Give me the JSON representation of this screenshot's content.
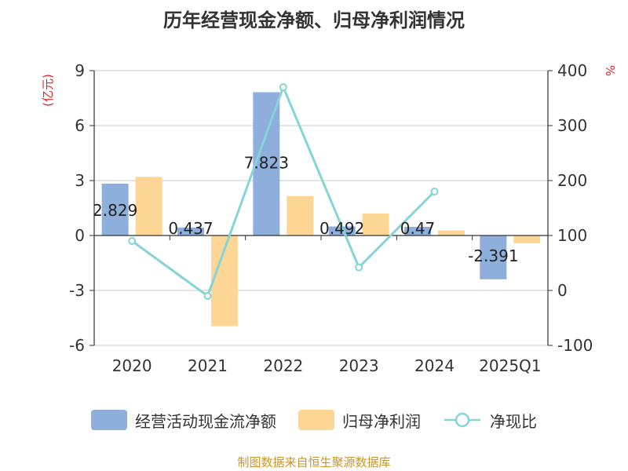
{
  "title": "历年经营现金净额、归母净利润情况",
  "source_note": "制图数据来自恒生聚源数据库",
  "colors": {
    "cash_flow": "#8eaedb",
    "net_profit": "#fdd594",
    "ratio": "#86d3d8",
    "axis_unit": "#e0262b",
    "source": "#c8952b"
  },
  "legend": {
    "cash_flow": "经营活动现金流净额",
    "net_profit": "归母净利润",
    "ratio": "净现比"
  },
  "chart_data": {
    "type": "bar",
    "categories": [
      "2020",
      "2021",
      "2022",
      "2023",
      "2024",
      "2025Q1"
    ],
    "left_axis_unit": "(亿元)",
    "right_axis_unit": "%",
    "ylim_left": [
      -6,
      9
    ],
    "yticks_left": [
      "-6",
      "-3",
      "0",
      "3",
      "6",
      "9"
    ],
    "ylim_right": [
      -100,
      400
    ],
    "yticks_right": [
      "-100",
      "0",
      "100",
      "200",
      "300",
      "400"
    ],
    "grid": true,
    "legend_position": "bottom",
    "series": [
      {
        "name": "经营活动现金流净额",
        "axis": "left",
        "kind": "bar",
        "values": [
          2.829,
          0.437,
          7.823,
          0.492,
          0.47,
          -2.391
        ],
        "labels": [
          "2.829",
          "0.437",
          "7.823",
          "0.492",
          "0.47",
          "-2.391"
        ]
      },
      {
        "name": "归母净利润",
        "axis": "left",
        "kind": "bar",
        "values": [
          3.2,
          -4.95,
          2.15,
          1.2,
          0.28,
          -0.42
        ]
      },
      {
        "name": "净现比",
        "axis": "right",
        "kind": "line",
        "values": [
          90,
          -10,
          370,
          42,
          180,
          null
        ]
      }
    ]
  }
}
